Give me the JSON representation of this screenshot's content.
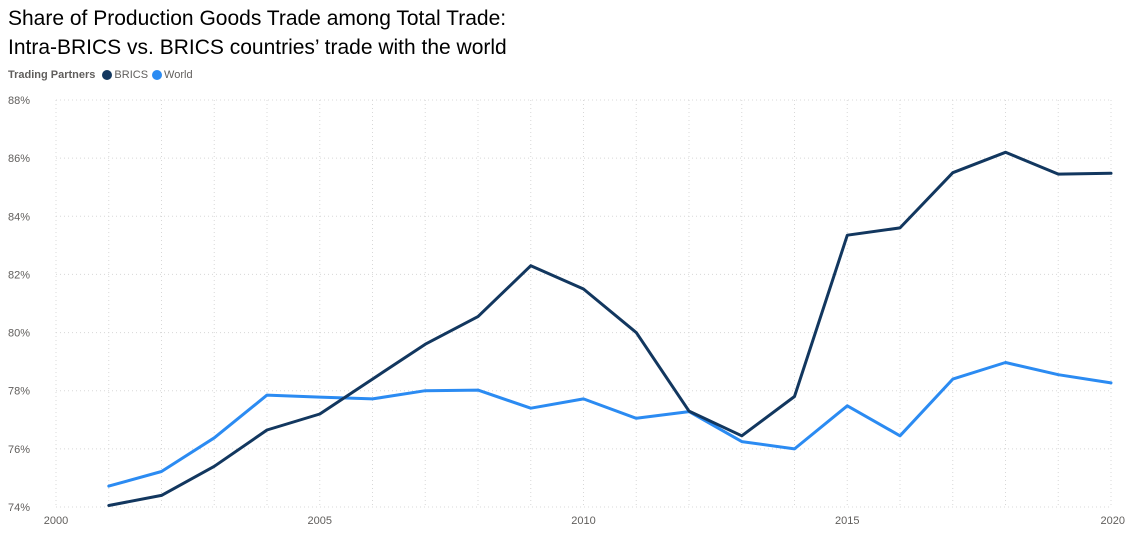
{
  "title_lines": [
    "Share of Production Goods Trade among Total Trade:",
    "Intra-BRICS vs. BRICS countries’ trade with the world"
  ],
  "legend": {
    "title": "Trading Partners",
    "items": [
      {
        "label": "BRICS",
        "color": "#12375f"
      },
      {
        "label": "World",
        "color": "#2b8bf2"
      }
    ]
  },
  "chart_data": {
    "type": "line",
    "title": "Share of Production Goods Trade among Total Trade: Intra-BRICS vs. BRICS countries’ trade with the world",
    "legend_title": "Trading Partners",
    "legend_position": "top-left",
    "grid": true,
    "xlim": [
      2000,
      2020
    ],
    "xticks": [
      2000,
      2005,
      2010,
      2015,
      2020
    ],
    "ylim": [
      74,
      88
    ],
    "yticks": [
      "74%",
      "76%",
      "78%",
      "80%",
      "82%",
      "84%",
      "86%",
      "88%"
    ],
    "x": [
      2001,
      2002,
      2003,
      2004,
      2005,
      2006,
      2007,
      2008,
      2009,
      2010,
      2011,
      2012,
      2013,
      2014,
      2015,
      2016,
      2017,
      2018,
      2019,
      2020
    ],
    "series": [
      {
        "name": "BRICS",
        "color": "#12375f",
        "values": [
          74.05,
          74.4,
          75.4,
          76.65,
          77.2,
          78.4,
          79.6,
          80.55,
          82.3,
          81.5,
          80.0,
          77.3,
          76.45,
          77.8,
          83.35,
          83.6,
          85.5,
          86.2,
          85.45,
          85.48
        ]
      },
      {
        "name": "World",
        "color": "#2b8bf2",
        "values": [
          74.72,
          75.22,
          76.38,
          77.85,
          77.78,
          77.72,
          78.0,
          78.02,
          77.4,
          77.72,
          77.05,
          77.28,
          76.25,
          76.0,
          77.48,
          76.45,
          78.4,
          78.97,
          78.55,
          78.27
        ]
      }
    ]
  }
}
